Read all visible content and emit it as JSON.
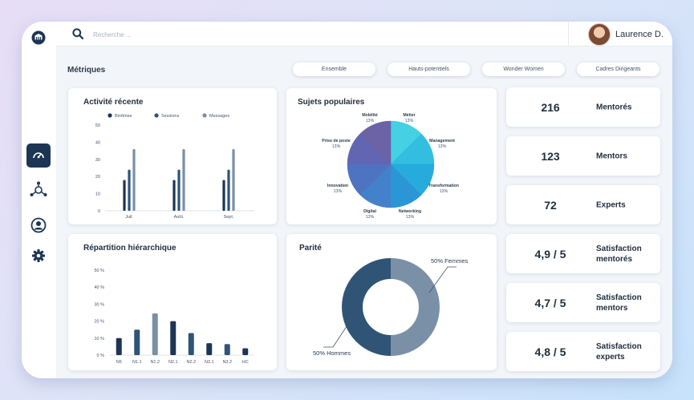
{
  "sidebar": {
    "items": [
      {
        "name": "logo-icon"
      },
      {
        "name": "dashboard-icon",
        "active": true
      },
      {
        "name": "network-icon"
      },
      {
        "name": "user-icon"
      },
      {
        "name": "gear-icon"
      }
    ]
  },
  "search": {
    "placeholder": "Recherche ..."
  },
  "user": {
    "name": "Laurence D."
  },
  "header": {
    "title": "Métriques"
  },
  "filters": [
    {
      "label": "Ensemble",
      "active": true
    },
    {
      "label": "Hauts-potentiels",
      "active": false
    },
    {
      "label": "Wonder Women",
      "active": false
    },
    {
      "label": "Cadres Dirigeants",
      "active": false
    }
  ],
  "cards": {
    "activity": {
      "title": "Activité récente"
    },
    "topics": {
      "title": "Sujets populaires"
    },
    "hierarchy": {
      "title": "Répartition hiérarchique"
    },
    "parity": {
      "title": "Parité"
    }
  },
  "stats": [
    {
      "value": "216",
      "label": "Mentorés"
    },
    {
      "value": "123",
      "label": "Mentors"
    },
    {
      "value": "72",
      "label": "Experts"
    },
    {
      "value": "4,9 / 5",
      "label": "Satisfaction mentorés"
    },
    {
      "value": "4,7 / 5",
      "label": "Satisfaction mentors"
    },
    {
      "value": "4,8 / 5",
      "label": "Satisfaction experts"
    }
  ],
  "colors": {
    "navy": "#1c3554",
    "mid_blue": "#2f5478",
    "gray_blue": "#7a8fa6",
    "donut_dark": "#2f5475",
    "donut_light": "#7a90a6"
  },
  "chart_data": [
    {
      "id": "activity",
      "type": "bar",
      "categories": [
        "Juil.",
        "Août.",
        "Sept."
      ],
      "series": [
        {
          "name": "Binômes",
          "values": [
            18,
            18,
            18
          ]
        },
        {
          "name": "Sessions",
          "values": [
            24,
            24,
            24
          ]
        },
        {
          "name": "Messages",
          "values": [
            36,
            36,
            36
          ]
        }
      ],
      "yticks": [
        0,
        10,
        20,
        30,
        40,
        50
      ],
      "ylim": [
        0,
        50
      ],
      "legend": "top"
    },
    {
      "id": "topics",
      "type": "pie",
      "slices": [
        {
          "label": "Métier",
          "value": 13,
          "text": "13%"
        },
        {
          "label": "Management",
          "value": 13,
          "text": "13%"
        },
        {
          "label": "Transformation",
          "value": 13,
          "text": "13%"
        },
        {
          "label": "Networking",
          "value": 13,
          "text": "13%"
        },
        {
          "label": "Digital",
          "value": 13,
          "text": "13%"
        },
        {
          "label": "Innovation",
          "value": 13,
          "text": "13%"
        },
        {
          "label": "Prise de poste",
          "value": 13,
          "text": "13%"
        },
        {
          "label": "Mobilité",
          "value": 13,
          "text": "13%"
        }
      ]
    },
    {
      "id": "hierarchy",
      "type": "bar",
      "categories": [
        "N5",
        "N1.1",
        "N1.2",
        "N2.1",
        "N2.2",
        "N3.1",
        "N3.2",
        "HC"
      ],
      "values": [
        10,
        15,
        24.5,
        20,
        13,
        7,
        6.5,
        4
      ],
      "yticks": [
        "0 %",
        "10 %",
        "20 %",
        "30 %",
        "40 %",
        "50 %"
      ],
      "ylim": [
        0,
        50
      ]
    },
    {
      "id": "parity",
      "type": "pie",
      "donut": true,
      "slices": [
        {
          "label": "50% Femmes",
          "value": 50
        },
        {
          "label": "50% Hommes",
          "value": 50
        }
      ]
    }
  ]
}
